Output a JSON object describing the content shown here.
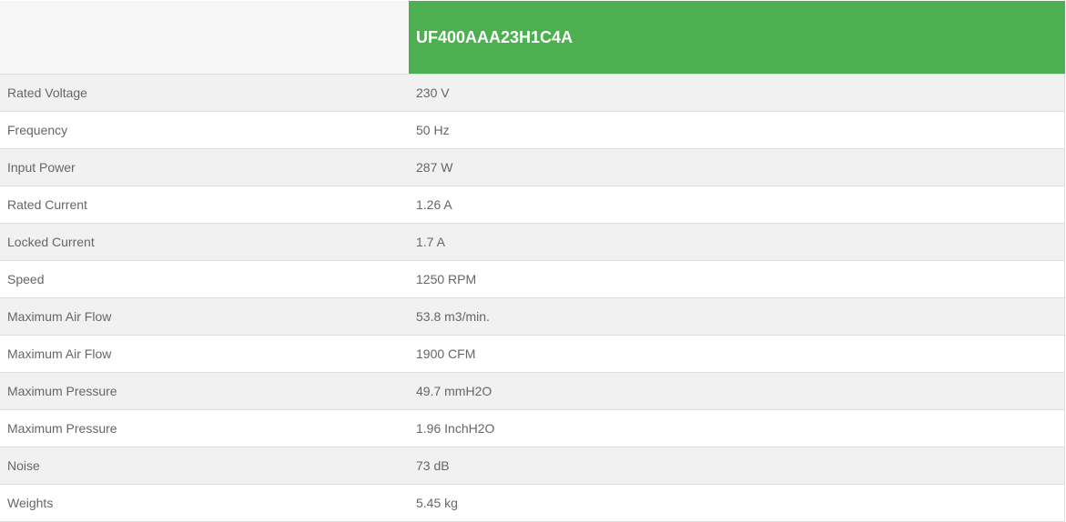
{
  "header": {
    "model": "UF400AAA23H1C4A",
    "accent_color": "#4caf50"
  },
  "rows": [
    {
      "label": "Rated Voltage",
      "value": "230 V"
    },
    {
      "label": "Frequency",
      "value": "50 Hz"
    },
    {
      "label": "Input Power",
      "value": "287 W"
    },
    {
      "label": "Rated Current",
      "value": "1.26 A"
    },
    {
      "label": "Locked Current",
      "value": "1.7 A"
    },
    {
      "label": "Speed",
      "value": "1250 RPM"
    },
    {
      "label": "Maximum Air Flow",
      "value": "53.8 m3/min."
    },
    {
      "label": "Maximum Air Flow",
      "value": "1900 CFM"
    },
    {
      "label": "Maximum Pressure",
      "value": "49.7 mmH2O"
    },
    {
      "label": "Maximum Pressure",
      "value": "1.96 InchH2O"
    },
    {
      "label": "Noise",
      "value": "73 dB"
    },
    {
      "label": "Weights",
      "value": "5.45 kg"
    }
  ]
}
